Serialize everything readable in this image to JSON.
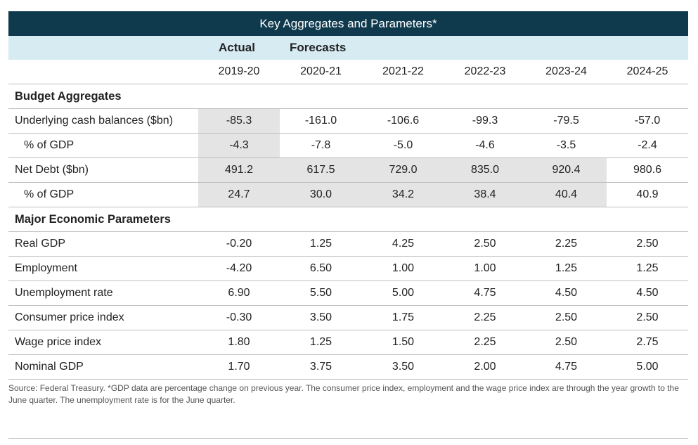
{
  "title": "Key Aggregates and Parameters*",
  "subheaders": {
    "actual": "Actual",
    "forecasts": "Forecasts"
  },
  "years": [
    "2019-20",
    "2020-21",
    "2021-22",
    "2022-23",
    "2023-24",
    "2024-25"
  ],
  "sections": {
    "budget": "Budget Aggregates",
    "economic": "Major Economic Parameters"
  },
  "rows": [
    {
      "label": "Underlying cash balances ($bn)",
      "values": [
        "-85.3",
        "-161.0",
        "-106.6",
        "-99.3",
        "-79.5",
        "-57.0"
      ]
    },
    {
      "label": "% of GDP",
      "values": [
        "-4.3",
        "-7.8",
        "-5.0",
        "-4.6",
        "-3.5",
        "-2.4"
      ]
    },
    {
      "label": "Net Debt ($bn)",
      "values": [
        "491.2",
        "617.5",
        "729.0",
        "835.0",
        "920.4",
        "980.6"
      ]
    },
    {
      "label": "% of GDP",
      "values": [
        "24.7",
        "30.0",
        "34.2",
        "38.4",
        "40.4",
        "40.9"
      ]
    },
    {
      "label": "Real GDP",
      "values": [
        "-0.20",
        "1.25",
        "4.25",
        "2.50",
        "2.25",
        "2.50"
      ]
    },
    {
      "label": "Employment",
      "values": [
        "-4.20",
        "6.50",
        "1.00",
        "1.00",
        "1.25",
        "1.25"
      ]
    },
    {
      "label": "Unemployment rate",
      "values": [
        "6.90",
        "5.50",
        "5.00",
        "4.75",
        "4.50",
        "4.50"
      ]
    },
    {
      "label": "Consumer price index",
      "values": [
        "-0.30",
        "3.50",
        "1.75",
        "2.25",
        "2.50",
        "2.50"
      ]
    },
    {
      "label": "Wage price index",
      "values": [
        "1.80",
        "1.25",
        "1.50",
        "2.25",
        "2.50",
        "2.75"
      ]
    },
    {
      "label": "Nominal GDP",
      "values": [
        "1.70",
        "3.75",
        "3.50",
        "2.00",
        "4.75",
        "5.00"
      ]
    }
  ],
  "source": "Source: Federal Treasury. *GDP data are percentage change on previous year. The consumer price index, employment and the wage price index are through the year growth to the June quarter. The unemployment rate is for the June quarter.",
  "colors": {
    "title_bar": "#0f3a4e",
    "subheader_bar": "#d6ebf2",
    "shade": "#e4e4e4"
  }
}
